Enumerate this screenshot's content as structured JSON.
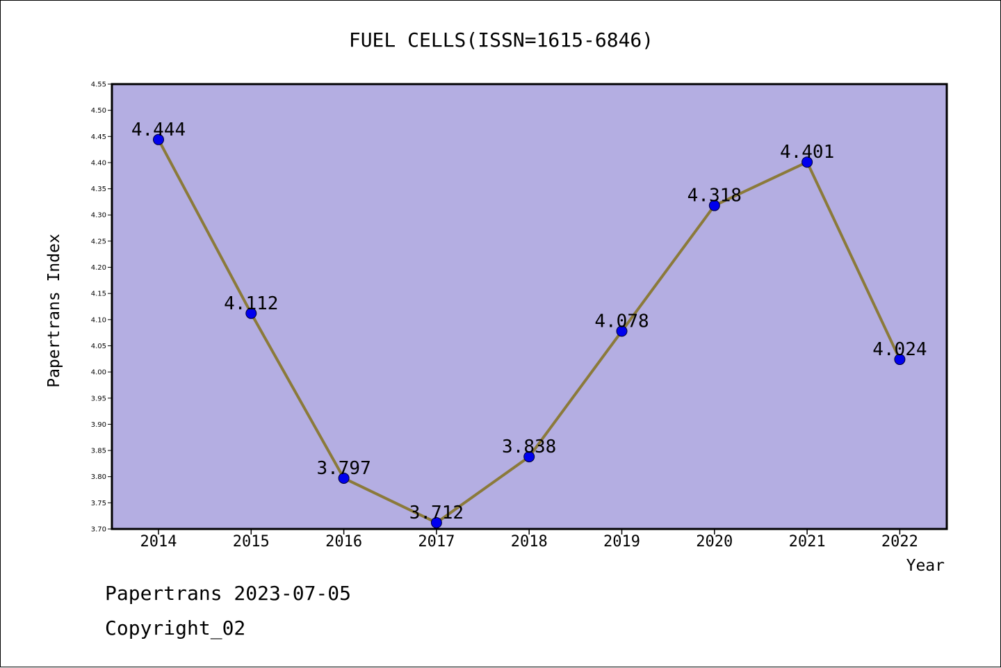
{
  "chart_data": {
    "type": "line",
    "title": "FUEL CELLS(ISSN=1615-6846)",
    "xlabel": "Year",
    "ylabel": "Papertrans Index",
    "categories": [
      "2014",
      "2015",
      "2016",
      "2017",
      "2018",
      "2019",
      "2020",
      "2021",
      "2022"
    ],
    "series": [
      {
        "values": [
          4.444,
          4.112,
          3.797,
          3.712,
          3.838,
          4.078,
          4.318,
          4.401,
          4.024
        ]
      }
    ],
    "data_labels": [
      "4.444",
      "4.112",
      "3.797",
      "3.712",
      "3.838",
      "4.078",
      "4.318",
      "4.401",
      "4.024"
    ],
    "ylim": [
      3.7,
      4.55
    ],
    "yticks": [
      "3.70",
      "3.75",
      "3.80",
      "3.85",
      "3.90",
      "3.95",
      "4.00",
      "4.05",
      "4.10",
      "4.15",
      "4.20",
      "4.25",
      "4.30",
      "4.35",
      "4.40",
      "4.45",
      "4.50",
      "4.55"
    ],
    "grid": false,
    "legend": "none",
    "colors": {
      "plot_background": "#b4aee2",
      "line": "#8b7a3a",
      "marker": "#0000ee",
      "axis": "#000000"
    }
  },
  "footer": {
    "line1": "Papertrans 2023-07-05",
    "line2": "Copyright_02"
  }
}
